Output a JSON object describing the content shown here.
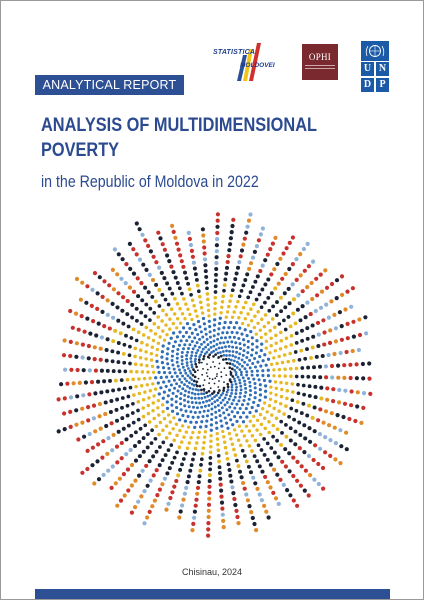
{
  "logos": {
    "statistica_top": "STATISTICA",
    "statistica_bottom": "MOLDOVEI",
    "ophi": "OPHI",
    "undp_letters": [
      "U",
      "N",
      "D",
      "P"
    ]
  },
  "report_label": "ANALYTICAL REPORT",
  "title": "ANALYSIS OF MULTIDIMENSIONAL POVERTY",
  "subtitle": "in the Republic of Moldova in 2022",
  "footer": {
    "place_year": "Chisinau, 2024"
  },
  "colors": {
    "brand_blue": "#2d4f93",
    "title_blue": "#2b4a8f",
    "dot_blue": "#2f6db5",
    "dot_yellow": "#e6b824",
    "dot_navy": "#1a2233",
    "dot_red": "#c8312c",
    "dot_orange": "#e08a2a",
    "dot_lightblue": "#8fb3d9",
    "ophi_maroon": "#7a2a2f",
    "undp_blue": "#1a5aa6"
  },
  "icons": {
    "undp": "undp-emblem-icon",
    "statistica": "statistica-bars-icon",
    "art": "radial-dot-burst-graphic"
  }
}
